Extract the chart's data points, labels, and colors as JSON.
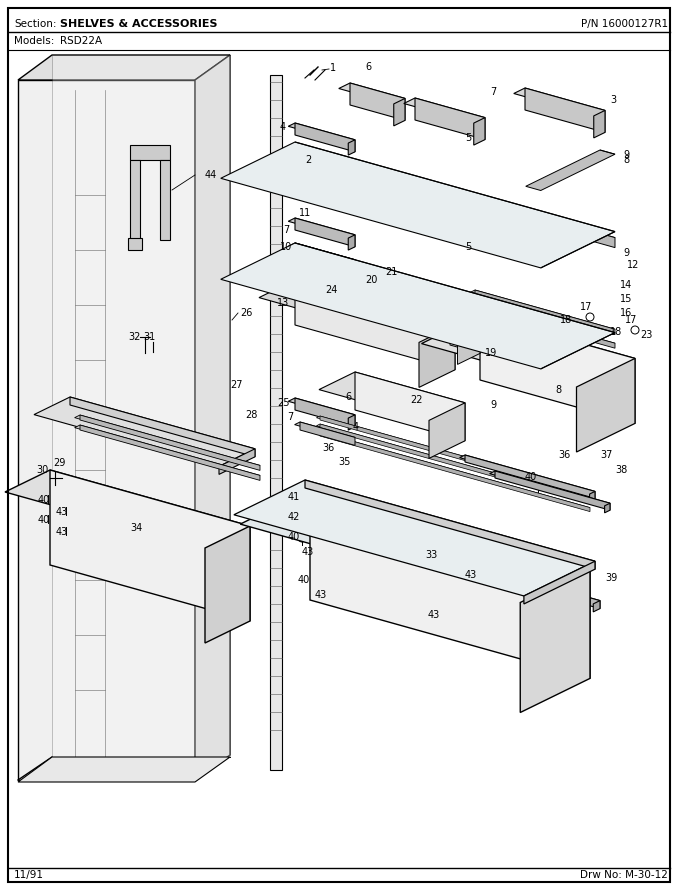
{
  "title_section": "Section:",
  "title_section_bold": "SHELVES & ACCESSORIES",
  "title_pn": "P/N 16000127R1",
  "title_models": "Models:",
  "title_model_name": "RSD22A",
  "footer_date": "11/91",
  "footer_drw": "Drw No: M-30-12",
  "bg_color": "#ffffff",
  "border_color": "#000000",
  "text_color": "#000000",
  "fig_width": 6.8,
  "fig_height": 8.9,
  "dpi": 100
}
